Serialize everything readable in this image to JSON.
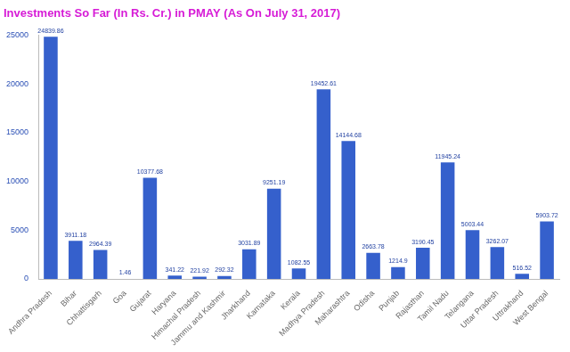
{
  "chart_data": {
    "type": "bar",
    "title": "Investments So Far (In Rs. Cr.) in PMAY (As On July 31, 2017)",
    "categories": [
      "Andhra Pradesh",
      "Bihar",
      "Chhattisgarh",
      "Goa",
      "Gujarat",
      "Haryana",
      "Himachal Pradesh",
      "Jammu and Kashmir",
      "Jharkhand",
      "Karnataka",
      "Kerala",
      "Madhya Pradesh",
      "Maharashtra",
      "Odisha",
      "Punjab",
      "Rajasthan",
      "Tamil Nadu",
      "Telangana",
      "Uttar Pradesh",
      "Uttrakhand",
      "West Bengal"
    ],
    "values": [
      24839.86,
      3911.18,
      2964.39,
      1.46,
      10377.68,
      341.22,
      221.92,
      292.32,
      3031.89,
      9251.19,
      1082.55,
      19452.61,
      14144.68,
      2663.78,
      1214.9,
      3190.45,
      11945.24,
      5003.44,
      3262.07,
      516.52,
      5903.72
    ],
    "color": "#3560cc",
    "ylim": [
      0,
      25000
    ],
    "yticks": [
      0,
      5000,
      10000,
      15000,
      20000,
      25000
    ],
    "grid": false,
    "data_labels": true
  }
}
